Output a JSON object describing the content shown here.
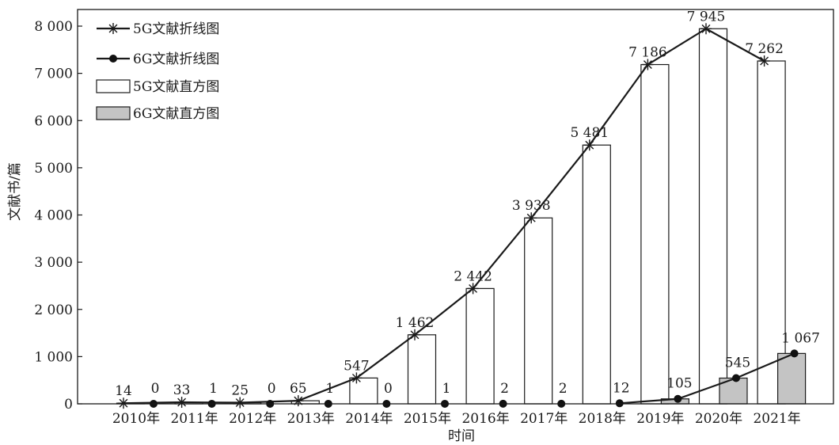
{
  "chart_data": {
    "type": "bar",
    "categories": [
      "2010年",
      "2011年",
      "2012年",
      "2013年",
      "2014年",
      "2015年",
      "2016年",
      "2017年",
      "2018年",
      "2019年",
      "2020年",
      "2021年"
    ],
    "series": [
      {
        "name": "5G文献直方图",
        "kind": "bar",
        "values": [
          14,
          33,
          25,
          65,
          547,
          1462,
          2442,
          3938,
          5481,
          7186,
          7945,
          7262
        ],
        "labels": [
          "14",
          "33",
          "25",
          "65",
          "547",
          "1 462",
          "2 442",
          "3 938",
          "5 481",
          "7 186",
          "7 945",
          "7 262"
        ]
      },
      {
        "name": "6G文献直方图",
        "kind": "bar",
        "values": [
          0,
          1,
          0,
          1,
          0,
          1,
          2,
          2,
          12,
          105,
          545,
          1067
        ],
        "labels": [
          "0",
          "1",
          "0",
          "1",
          "0",
          "1",
          "2",
          "2",
          "12",
          "105",
          "545",
          "1 067"
        ]
      },
      {
        "name": "5G文献折线图",
        "kind": "line",
        "marker": "star",
        "values": [
          14,
          33,
          25,
          65,
          547,
          1462,
          2442,
          3938,
          5481,
          7186,
          7945,
          7262
        ]
      },
      {
        "name": "6G文献折线图",
        "kind": "line",
        "marker": "dot",
        "values": [
          0,
          1,
          0,
          1,
          0,
          1,
          2,
          2,
          12,
          105,
          545,
          1067
        ]
      }
    ],
    "xlabel": "时间",
    "ylabel": "文献书/篇",
    "ylim": [
      0,
      8000
    ],
    "yticks": [
      0,
      1000,
      2000,
      3000,
      4000,
      5000,
      6000,
      7000,
      8000
    ],
    "ytick_labels": [
      "0",
      "1 000",
      "2 000",
      "3 000",
      "4 000",
      "5 000",
      "6 000",
      "7 000",
      "8 000"
    ],
    "legend": {
      "placement": "top-left",
      "items": [
        "5G文献折线图",
        "6G文献折线图",
        "5G文献直方图",
        "6G文献直方图"
      ]
    },
    "grid": false,
    "colors": {
      "bar_5g": "#ffffff",
      "bar_6g": "#c4c4c4",
      "line": "#1a1a1a"
    }
  }
}
